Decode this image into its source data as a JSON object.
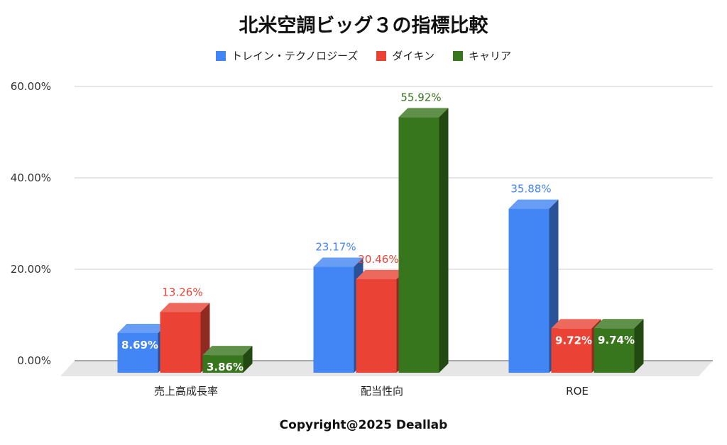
{
  "chart_data": {
    "type": "bar",
    "title": "北米空調ビッグ３の指標比較",
    "categories": [
      "売上高成長率",
      "配当性向",
      "ROE"
    ],
    "series": [
      {
        "name": "トレイン・テクノロジーズ",
        "values": [
          8.69,
          23.17,
          35.88
        ],
        "labels": [
          "8.69%",
          "23.17%",
          "35.88%"
        ],
        "color": "#4285F4"
      },
      {
        "name": "ダイキン",
        "values": [
          13.26,
          20.46,
          9.72
        ],
        "labels": [
          "13.26%",
          "20.46%",
          "9.72%"
        ],
        "color": "#EA4335"
      },
      {
        "name": "キャリア",
        "values": [
          3.86,
          55.92,
          9.74
        ],
        "labels": [
          "3.86%",
          "55.92%",
          "9.74%"
        ],
        "color": "#38761D"
      }
    ],
    "yticks": [
      "0.00%",
      "20.00%",
      "40.00%",
      "60.00%"
    ],
    "ylim": [
      0,
      60
    ],
    "grid": true,
    "legend_position": "top"
  },
  "footer": "Copyright@2025 Deallab"
}
